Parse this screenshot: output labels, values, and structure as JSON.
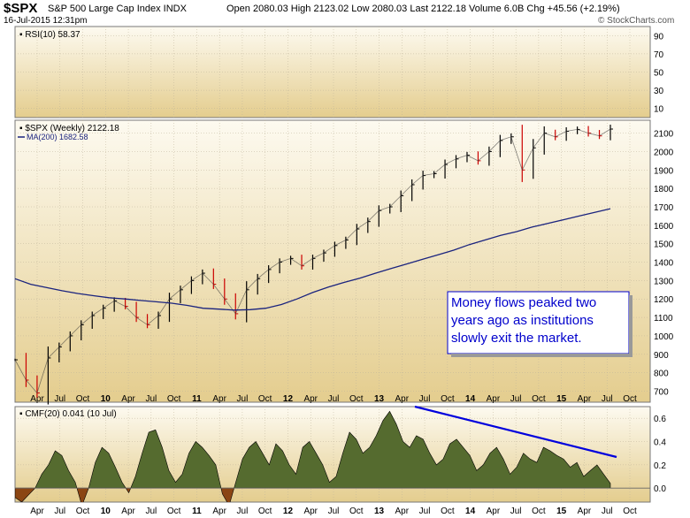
{
  "header": {
    "symbol": "$SPX",
    "name": "S&P 500 Large Cap Index  INDX",
    "stats": "Open 2080.03   High 2123.02   Low 2080.03   Last 2122.18   Volume 6.0B   Chg +45.56 (+2.19%)",
    "timestamp": "16-Jul-2015 12:31pm",
    "brand": "© StockCharts.com"
  },
  "colors": {
    "price_up": "#000000",
    "price_down": "#cc0000",
    "ma_line": "#1a237e",
    "cmf_fill": "#556b2f",
    "cmf_neg": "#8b4513",
    "trend_line": "#0000dd",
    "annotation_border": "#0000cc",
    "annotation_text": "#0000cc"
  },
  "chart_data": [
    {
      "type": "line",
      "panel": "rsi",
      "label": "RSI(10) 58.37",
      "yticks": [
        "90",
        "70",
        "50",
        "30",
        "10"
      ],
      "ylim": [
        0,
        100
      ],
      "grid": true
    },
    {
      "type": "line",
      "panel": "price",
      "label": "$SPX (Weekly) 2122.18",
      "series": [
        {
          "name": "$SPX (Weekly)",
          "values": [
            870,
            760,
            690,
            880,
            940,
            1000,
            1060,
            1110,
            1150,
            1190,
            1160,
            1100,
            1060,
            1110,
            1200,
            1250,
            1300,
            1340,
            1280,
            1200,
            1120,
            1250,
            1310,
            1360,
            1400,
            1420,
            1380,
            1420,
            1450,
            1490,
            1520,
            1580,
            1620,
            1680,
            1700,
            1760,
            1820,
            1870,
            1880,
            1930,
            1960,
            1980,
            1950,
            2000,
            2060,
            2080,
            1900,
            2020,
            2100,
            2080,
            2110,
            2120,
            2100,
            2085,
            2122
          ]
        },
        {
          "name": "MA(200)",
          "values": [
            1310,
            1280,
            1262,
            1245,
            1230,
            1218,
            1207,
            1200,
            1192,
            1185,
            1177,
            1165,
            1150,
            1145,
            1140,
            1142,
            1150,
            1170,
            1200,
            1235,
            1265,
            1290,
            1313,
            1340,
            1365,
            1390,
            1415,
            1440,
            1465,
            1495,
            1520,
            1545,
            1565,
            1590,
            1610,
            1630,
            1650,
            1670,
            1690
          ]
        }
      ],
      "ma_label": "MA(200) 1682.58",
      "yticks": [
        2100,
        2000,
        1900,
        1800,
        1700,
        1600,
        1500,
        1400,
        1300,
        1200,
        1100,
        1000,
        900,
        800,
        700
      ],
      "ylim": [
        640,
        2170
      ],
      "grid": true
    },
    {
      "type": "area",
      "panel": "cmf",
      "label": "CMF(20) 0.041 (10 Jul)",
      "series": [
        {
          "name": "CMF(20)",
          "values": [
            -0.08,
            -0.12,
            -0.06,
            0.0,
            0.12,
            0.2,
            0.32,
            0.28,
            0.15,
            0.05,
            -0.15,
            0.0,
            0.22,
            0.35,
            0.3,
            0.18,
            0.05,
            -0.04,
            0.1,
            0.3,
            0.48,
            0.5,
            0.35,
            0.15,
            0.05,
            0.12,
            0.3,
            0.4,
            0.35,
            0.28,
            0.2,
            -0.05,
            -0.15,
            0.05,
            0.25,
            0.35,
            0.4,
            0.3,
            0.2,
            0.38,
            0.32,
            0.2,
            0.12,
            0.35,
            0.4,
            0.3,
            0.2,
            0.05,
            0.1,
            0.3,
            0.48,
            0.42,
            0.3,
            0.35,
            0.45,
            0.58,
            0.66,
            0.55,
            0.4,
            0.35,
            0.45,
            0.42,
            0.3,
            0.2,
            0.25,
            0.38,
            0.42,
            0.35,
            0.28,
            0.15,
            0.2,
            0.3,
            0.35,
            0.25,
            0.12,
            0.18,
            0.3,
            0.25,
            0.22,
            0.35,
            0.32,
            0.28,
            0.25,
            0.18,
            0.22,
            0.1,
            0.15,
            0.2,
            0.12,
            0.04
          ]
        }
      ],
      "yticks": [
        "0.6",
        "0.4",
        "0.2",
        "0.0"
      ],
      "ylim": [
        -0.12,
        0.7
      ],
      "grid": true
    }
  ],
  "x_axis": {
    "labels": [
      "Apr",
      "Jul",
      "Oct",
      "10",
      "Apr",
      "Jul",
      "Oct",
      "11",
      "Apr",
      "Jul",
      "Oct",
      "12",
      "Apr",
      "Jul",
      "Oct",
      "13",
      "Apr",
      "Jul",
      "Oct",
      "14",
      "Apr",
      "Jul",
      "Oct",
      "15",
      "Apr",
      "Jul",
      "Oct"
    ],
    "bold": [
      "10",
      "11",
      "12",
      "13",
      "14",
      "15"
    ]
  },
  "annotation": {
    "lines": [
      "Money flows peaked two",
      "years ago as institutions",
      "slowly exit the market."
    ]
  }
}
